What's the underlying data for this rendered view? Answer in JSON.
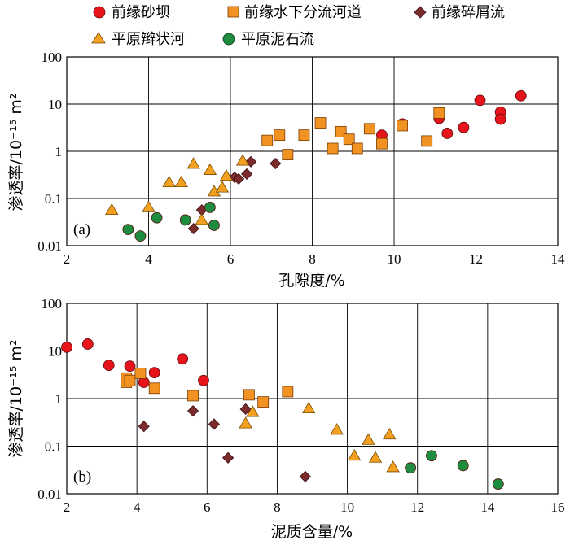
{
  "legend": {
    "items": [
      {
        "label": "前缘砂坝",
        "marker": "circle",
        "color": "#e8141c"
      },
      {
        "label": "前缘水下分流河道",
        "marker": "square",
        "color": "#f29222"
      },
      {
        "label": "前缘碎屑流",
        "marker": "diamond",
        "color": "#7b2b2c"
      },
      {
        "label": "平原辫状河",
        "marker": "triangle",
        "color": "#f2a020"
      },
      {
        "label": "平原泥石流",
        "marker": "circle",
        "color": "#1e8c3e"
      }
    ]
  },
  "chart_data": [
    {
      "type": "scatter",
      "panel_label": "(a)",
      "xlabel": "孔隙度/%",
      "ylabel": "渗透率/10⁻¹⁵ m²",
      "xlim": [
        2,
        14
      ],
      "ylim": [
        0.01,
        100
      ],
      "yscale": "log",
      "grid": true,
      "xticks": [
        "2",
        "4",
        "6",
        "8",
        "10",
        "12",
        "14"
      ],
      "yticks": [
        "0.01",
        "0.1",
        "1",
        "10",
        "100"
      ],
      "series": [
        {
          "name": "前缘砂坝",
          "points": [
            [
              9.7,
              2.2
            ],
            [
              10.2,
              3.8
            ],
            [
              11.1,
              5.0
            ],
            [
              11.3,
              2.4
            ],
            [
              11.7,
              3.2
            ],
            [
              12.1,
              12
            ],
            [
              12.6,
              6.8
            ],
            [
              12.6,
              4.8
            ],
            [
              13.1,
              15
            ]
          ]
        },
        {
          "name": "前缘水下分流河道",
          "points": [
            [
              6.9,
              1.7
            ],
            [
              7.2,
              2.2
            ],
            [
              7.4,
              0.85
            ],
            [
              7.8,
              2.2
            ],
            [
              8.2,
              4.0
            ],
            [
              8.5,
              1.15
            ],
            [
              8.7,
              2.6
            ],
            [
              8.9,
              1.8
            ],
            [
              9.1,
              1.15
            ],
            [
              9.4,
              3.0
            ],
            [
              9.7,
              1.45
            ],
            [
              10.2,
              3.5
            ],
            [
              10.8,
              1.65
            ],
            [
              11.1,
              6.5
            ]
          ]
        },
        {
          "name": "前缘碎屑流",
          "points": [
            [
              5.1,
              0.023
            ],
            [
              5.3,
              0.057
            ],
            [
              6.1,
              0.28
            ],
            [
              6.2,
              0.26
            ],
            [
              6.4,
              0.33
            ],
            [
              6.5,
              0.6
            ],
            [
              7.1,
              0.55
            ]
          ]
        },
        {
          "name": "平原辫状河",
          "points": [
            [
              3.1,
              0.057
            ],
            [
              4.0,
              0.065
            ],
            [
              4.5,
              0.22
            ],
            [
              4.8,
              0.22
            ],
            [
              5.1,
              0.54
            ],
            [
              5.3,
              0.035
            ],
            [
              5.5,
              0.4
            ],
            [
              5.6,
              0.14
            ],
            [
              5.8,
              0.17
            ],
            [
              5.9,
              0.3
            ],
            [
              6.3,
              0.63
            ]
          ]
        },
        {
          "name": "平原泥石流",
          "points": [
            [
              3.5,
              0.022
            ],
            [
              3.8,
              0.016
            ],
            [
              4.2,
              0.039
            ],
            [
              4.9,
              0.035
            ],
            [
              5.5,
              0.065
            ],
            [
              5.6,
              0.027
            ]
          ]
        }
      ]
    },
    {
      "type": "scatter",
      "panel_label": "(b)",
      "xlabel": "泥质含量/%",
      "ylabel": "渗透率/10⁻¹⁵ m²",
      "xlim": [
        2,
        16
      ],
      "ylim": [
        0.01,
        100
      ],
      "yscale": "log",
      "grid": true,
      "xticks": [
        "2",
        "4",
        "6",
        "8",
        "10",
        "12",
        "14",
        "16"
      ],
      "yticks": [
        "0.01",
        "0.1",
        "1",
        "10",
        "100"
      ],
      "series": [
        {
          "name": "前缘砂坝",
          "points": [
            [
              2.0,
              12
            ],
            [
              2.6,
              14
            ],
            [
              3.2,
              5.0
            ],
            [
              3.8,
              4.8
            ],
            [
              4.2,
              2.2
            ],
            [
              4.5,
              3.5
            ],
            [
              5.3,
              6.8
            ],
            [
              5.9,
              2.4
            ]
          ]
        },
        {
          "name": "前缘水下分流河道",
          "points": [
            [
              3.7,
              2.7
            ],
            [
              3.7,
              2.2
            ],
            [
              3.8,
              2.4
            ],
            [
              4.1,
              3.4
            ],
            [
              4.5,
              1.65
            ],
            [
              5.6,
              1.15
            ],
            [
              7.2,
              1.2
            ],
            [
              7.6,
              0.85
            ],
            [
              8.3,
              1.4
            ]
          ]
        },
        {
          "name": "前缘碎屑流",
          "points": [
            [
              4.2,
              0.26
            ],
            [
              5.6,
              0.55
            ],
            [
              6.2,
              0.29
            ],
            [
              6.6,
              0.057
            ],
            [
              7.1,
              0.6
            ],
            [
              8.8,
              0.023
            ]
          ]
        },
        {
          "name": "平原辫状河",
          "points": [
            [
              7.1,
              0.3
            ],
            [
              7.3,
              0.52
            ],
            [
              8.9,
              0.62
            ],
            [
              9.7,
              0.22
            ],
            [
              10.2,
              0.063
            ],
            [
              10.6,
              0.135
            ],
            [
              10.8,
              0.057
            ],
            [
              11.2,
              0.175
            ],
            [
              11.3,
              0.036
            ]
          ]
        },
        {
          "name": "平原泥石流",
          "points": [
            [
              11.8,
              0.035
            ],
            [
              12.4,
              0.063
            ],
            [
              13.3,
              0.039
            ],
            [
              14.3,
              0.016
            ]
          ]
        }
      ]
    }
  ]
}
